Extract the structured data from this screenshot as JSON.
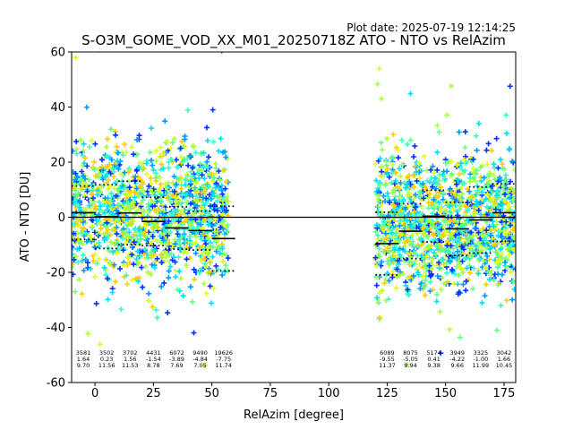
{
  "header": {
    "plot_date": "Plot date: 2025-07-19 12:14:25"
  },
  "chart_data": {
    "type": "scatter",
    "title": "S-O3M_GOME_VOD_XX_M01_20250718Z ATO - NTO vs RelAzim",
    "xlabel": "RelAzim [degree]",
    "ylabel": "ATO - NTO [DU]",
    "xlim": [
      -10,
      180
    ],
    "ylim": [
      -60,
      60
    ],
    "xticks": [
      0,
      25,
      50,
      75,
      100,
      125,
      150,
      175
    ],
    "yticks": [
      -60,
      -40,
      -20,
      0,
      20,
      40,
      60
    ],
    "marker": "+",
    "colormap": [
      "#0033ff",
      "#0099ff",
      "#00ddff",
      "#33ffcc",
      "#66ff88",
      "#aaff44",
      "#ddff22",
      "#ffcc00"
    ],
    "zero_line": 0,
    "point_clusters": [
      {
        "x_range": [
          -10,
          57
        ],
        "y_center": 2,
        "y_spread": 22
      },
      {
        "x_range": [
          120,
          180
        ],
        "y_center": -2,
        "y_spread": 22
      }
    ],
    "bins": [
      {
        "x_start": -10,
        "x_end": 0,
        "mean": 1.64,
        "std": 9.7,
        "count": "3581",
        "mean_label": "1.64",
        "std_label": "9.70"
      },
      {
        "x_start": 0,
        "x_end": 10,
        "mean": 0.23,
        "std": 11.56,
        "count": "3502",
        "mean_label": "0.23",
        "std_label": "11.56"
      },
      {
        "x_start": 10,
        "x_end": 20,
        "mean": 1.56,
        "std": 11.53,
        "count": "3702",
        "mean_label": "1.56",
        "std_label": "11.53"
      },
      {
        "x_start": 20,
        "x_end": 30,
        "mean": -1.54,
        "std": 8.78,
        "count": "4431",
        "mean_label": "-1.54",
        "std_label": "8.78"
      },
      {
        "x_start": 30,
        "x_end": 40,
        "mean": -3.89,
        "std": 7.69,
        "count": "6072",
        "mean_label": "-3.89",
        "std_label": "7.69"
      },
      {
        "x_start": 40,
        "x_end": 50,
        "mean": -4.84,
        "std": 7.05,
        "count": "9490",
        "mean_label": "-4.84",
        "std_label": "7.05"
      },
      {
        "x_start": 50,
        "x_end": 60,
        "mean": -7.75,
        "std": 11.74,
        "count": "19626",
        "mean_label": "-7.75",
        "std_label": "11.74"
      },
      {
        "x_start": 120,
        "x_end": 130,
        "mean": -9.55,
        "std": 11.37,
        "count": "6089",
        "mean_label": "-9.55",
        "std_label": "11.37"
      },
      {
        "x_start": 130,
        "x_end": 140,
        "mean": -5.05,
        "std": 9.94,
        "count": "8075",
        "mean_label": "-5.05",
        "std_label": "9.94"
      },
      {
        "x_start": 140,
        "x_end": 150,
        "mean": 0.41,
        "std": 9.38,
        "count": "5174",
        "mean_label": "0.41",
        "std_label": "9.38"
      },
      {
        "x_start": 150,
        "x_end": 160,
        "mean": -4.22,
        "std": 9.66,
        "count": "3949",
        "mean_label": "-4.22",
        "std_label": "9.66"
      },
      {
        "x_start": 160,
        "x_end": 170,
        "mean": -1.0,
        "std": 11.99,
        "count": "3325",
        "mean_label": "-1.00",
        "std_label": "11.99"
      },
      {
        "x_start": 170,
        "x_end": 180,
        "mean": 1.66,
        "std": 10.45,
        "count": "3042",
        "mean_label": "1.66",
        "std_label": "10.45"
      }
    ]
  }
}
